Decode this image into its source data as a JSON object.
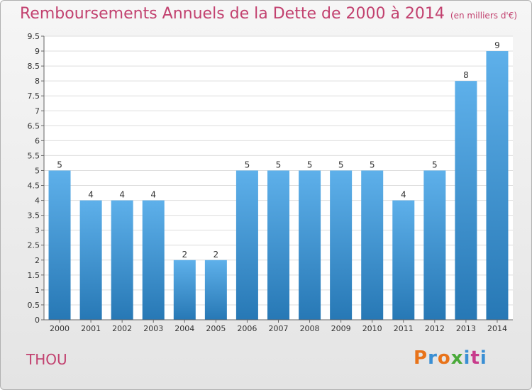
{
  "header": {
    "title": "Remboursements Annuels de la Dette de 2000 à 2014",
    "subtitle": "(en milliers d'€)"
  },
  "footer": {
    "city": "THOU",
    "logo": "Proxiti"
  },
  "colors": {
    "title": "#c2416f",
    "bar_top": "#5eb0ea",
    "bar_bottom": "#2778b5",
    "logo_letters": [
      "#e8731a",
      "#3a8fd4",
      "#e8731a",
      "#4aaa3a",
      "#3a8fd4",
      "#c83c8c",
      "#3a8fd4"
    ]
  },
  "chart_data": {
    "type": "bar",
    "categories": [
      "2000",
      "2001",
      "2002",
      "2003",
      "2004",
      "2005",
      "2006",
      "2007",
      "2008",
      "2009",
      "2010",
      "2011",
      "2012",
      "2013",
      "2014"
    ],
    "values": [
      5,
      4,
      4,
      4,
      2,
      2,
      5,
      5,
      5,
      5,
      5,
      4,
      5,
      8,
      9
    ],
    "ylim": [
      0,
      9.5
    ],
    "yticks": [
      "0",
      "0.5",
      "1",
      "1.5",
      "2",
      "2.5",
      "3",
      "3.5",
      "4",
      "4.5",
      "5",
      "5.5",
      "6",
      "6.5",
      "7",
      "7.5",
      "8",
      "8.5",
      "9",
      "9.5"
    ],
    "grid": true
  }
}
